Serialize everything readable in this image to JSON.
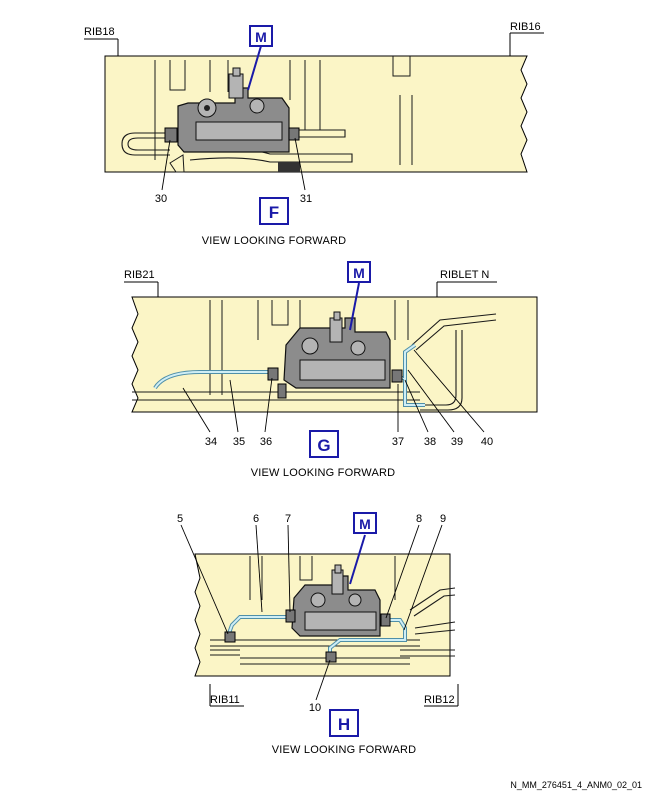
{
  "views": [
    {
      "id": "F",
      "ref_box": "F",
      "callout": "M",
      "caption": "VIEW LOOKING FORWARD",
      "rib_labels": [
        "RIB18",
        "RIB16"
      ],
      "item_labels": [
        "30",
        "31"
      ]
    },
    {
      "id": "G",
      "ref_box": "G",
      "callout": "M",
      "caption": "VIEW LOOKING FORWARD",
      "rib_labels": [
        "RIB21",
        "RIBLET N"
      ],
      "item_labels": [
        "34",
        "35",
        "36",
        "37",
        "38",
        "39",
        "40"
      ]
    },
    {
      "id": "H",
      "ref_box": "H",
      "callout": "M",
      "caption": "VIEW LOOKING FORWARD",
      "rib_labels": [
        "RIB11",
        "RIB12"
      ],
      "item_labels": [
        "5",
        "6",
        "7",
        "8",
        "9",
        "10"
      ]
    }
  ],
  "drawing_id": "N_MM_276451_4_ANM0_02_01",
  "colors": {
    "panel_fill": "#fbf5c6",
    "callout_blue": "#1a1aa8",
    "component_gray": "#8c8c8c",
    "tube_blue": "#4f8fa8"
  }
}
